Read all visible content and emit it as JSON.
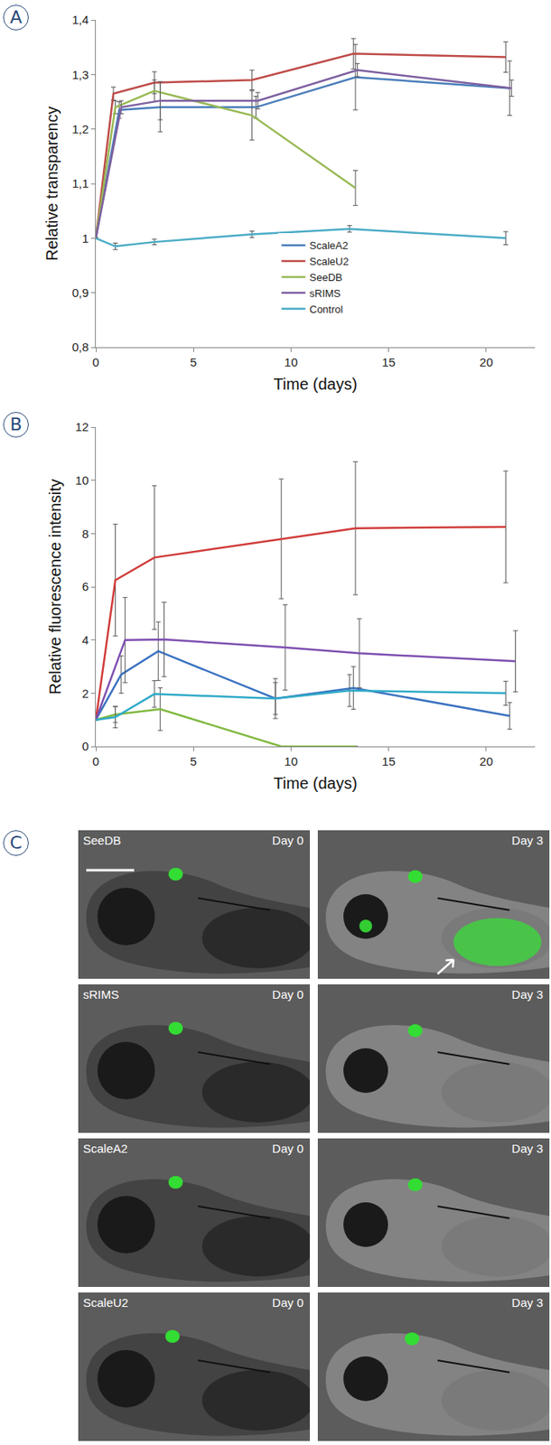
{
  "panel_labels": [
    "A",
    "B",
    "C"
  ],
  "chart_data": [
    {
      "type": "line",
      "y_label": "Relative transparency",
      "x_label": "Time (days)",
      "xlim": [
        0,
        22.5
      ],
      "xticks": [
        0,
        5,
        10,
        15,
        20
      ],
      "ylim": [
        0.8,
        1.4
      ],
      "yticks": [
        {
          "value": 0.8,
          "label": "0,8"
        },
        {
          "value": 0.9,
          "label": "0,9"
        },
        1,
        {
          "value": 1.1,
          "label": "1,1"
        },
        {
          "value": 1.2,
          "label": "1,2"
        },
        {
          "value": 1.3,
          "label": "1,3"
        },
        {
          "value": 1.4,
          "label": "1,4"
        }
      ],
      "legend": "lower center",
      "series": [
        {
          "name": "ScaleA2",
          "color": "#4a7ebb",
          "x": [
            0,
            1.2,
            3.3,
            8.2,
            13.3,
            21.2
          ],
          "values": [
            1,
            1.235,
            1.24,
            1.24,
            1.295,
            1.275
          ],
          "errors": [
            0,
            0.015,
            0.045,
            0.02,
            0.06,
            0.05
          ]
        },
        {
          "name": "ScaleU2",
          "color": "#be4b48",
          "x": [
            0,
            0.9,
            3,
            8,
            13.2,
            21
          ],
          "values": [
            1,
            1.265,
            1.285,
            1.29,
            1.338,
            1.332
          ],
          "errors": [
            0,
            0.012,
            0.02,
            0.018,
            0.028,
            0.028
          ]
        },
        {
          "name": "SeeDB",
          "color": "#98b954",
          "x": [
            0,
            1,
            3,
            8,
            13.3
          ],
          "values": [
            1,
            1.24,
            1.27,
            1.225,
            1.092
          ],
          "errors": [
            0,
            0.012,
            0.02,
            0.045,
            0.032
          ]
        },
        {
          "name": "sRIMS",
          "color": "#7d60a0",
          "x": [
            0,
            1.3,
            3.3,
            8.3,
            13.4,
            21.3
          ],
          "values": [
            1,
            1.24,
            1.252,
            1.252,
            1.308,
            1.275
          ],
          "errors": [
            0,
            0.012,
            0.035,
            0.015,
            0.012,
            0.015
          ]
        },
        {
          "name": "Control",
          "color": "#4bacc6",
          "x": [
            0,
            1,
            3,
            8,
            13,
            21
          ],
          "values": [
            1,
            0.985,
            0.993,
            1.007,
            1.017,
            1.0
          ],
          "errors": [
            0,
            0.006,
            0.005,
            0.006,
            0.006,
            0.012
          ]
        }
      ]
    },
    {
      "type": "line",
      "y_label": "Relative fluorescence intensity",
      "x_label": "Time (days)",
      "xlim": [
        0,
        22.5
      ],
      "xticks": [
        0,
        5,
        10,
        15,
        20
      ],
      "ylim": [
        0,
        12
      ],
      "yticks": [
        0,
        2,
        4,
        6,
        8,
        10,
        12
      ],
      "series": [
        {
          "name": "ScaleA2",
          "color": "#3a72c0",
          "x": [
            0,
            1.3,
            3.2,
            9.2,
            13.2,
            21.2
          ],
          "values": [
            1,
            2.7,
            3.58,
            1.8,
            2.2,
            1.15
          ],
          "errors": [
            0,
            0.7,
            1.1,
            0.75,
            0.8,
            0.5
          ]
        },
        {
          "name": "ScaleU2",
          "color": "#d03c3a",
          "x": [
            0,
            1,
            3,
            9.5,
            13.3,
            21
          ],
          "values": [
            1,
            6.25,
            7.1,
            7.8,
            8.2,
            8.25
          ],
          "errors": [
            0,
            2.1,
            2.7,
            2.25,
            2.5,
            2.1
          ]
        },
        {
          "name": "SeeDB",
          "color": "#80b940",
          "x": [
            0,
            1,
            3.3,
            9.5,
            13.3
          ],
          "values": [
            1,
            1.2,
            1.4,
            0,
            0
          ],
          "errors": [
            0,
            0.3,
            0.8,
            0,
            0
          ]
        },
        {
          "name": "sRIMS",
          "color": "#7d4fb0",
          "x": [
            0,
            1.5,
            3.5,
            9.7,
            13.5,
            21.5
          ],
          "values": [
            1,
            4.0,
            4.02,
            3.72,
            3.5,
            3.2
          ],
          "errors": [
            0,
            1.6,
            1.4,
            1.6,
            1.3,
            1.15
          ]
        },
        {
          "name": "Control",
          "color": "#30aac8",
          "x": [
            0,
            1,
            3,
            9.2,
            13,
            21
          ],
          "values": [
            1,
            1.1,
            1.97,
            1.8,
            2.1,
            2.0
          ],
          "errors": [
            0,
            0.4,
            0.5,
            0.6,
            0.6,
            0.45
          ]
        }
      ]
    }
  ],
  "images": [
    {
      "label": "SeeDB",
      "days": [
        "Day 0",
        "Day 3"
      ]
    },
    {
      "label": "sRIMS",
      "days": [
        "Day 0",
        "Day 3"
      ]
    },
    {
      "label": "ScaleA2",
      "days": [
        "Day 0",
        "Day 3"
      ]
    },
    {
      "label": "ScaleU2",
      "days": [
        "Day 0",
        "Day 3"
      ]
    }
  ]
}
